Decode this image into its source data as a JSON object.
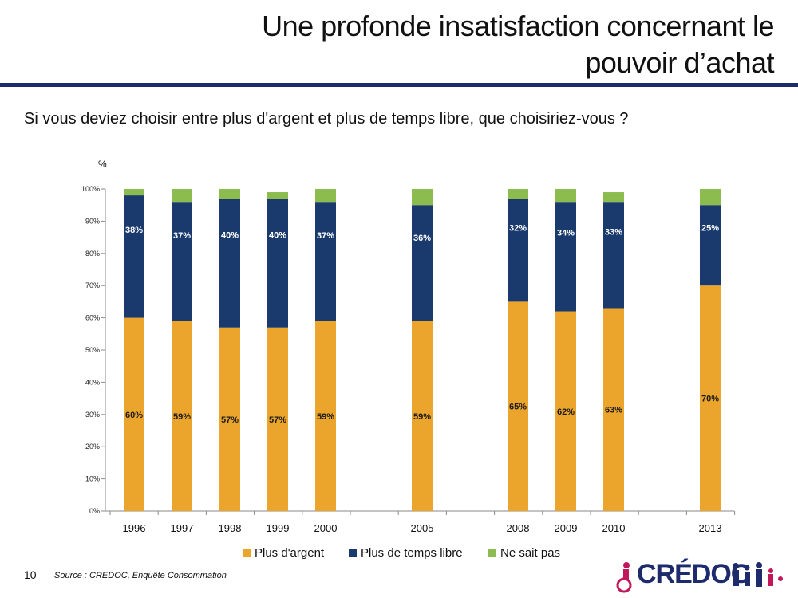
{
  "slide": {
    "title": "Une profonde insatisfaction concernant le pouvoir d’achat",
    "question": "Si vous deviez choisir entre plus d'argent et plus de temps libre, que choisiriez-vous ?",
    "page_number": "10",
    "source": "Source : CREDOC, Enquête Consommation"
  },
  "logo": {
    "text": "CRÉDOC"
  },
  "colors": {
    "argent": "#EBA52D",
    "temps": "#1A3A6E",
    "nsp": "#8DBC4E",
    "title_rule": "#1d2a6b"
  },
  "chart_data": {
    "type": "bar",
    "stacked": true,
    "unit_label": "%",
    "categories": [
      "1996",
      "1997",
      "1998",
      "1999",
      "2000",
      "2005",
      "2008",
      "2009",
      "2010",
      "2013"
    ],
    "series": [
      {
        "name": "Plus d'argent",
        "values": [
          60,
          59,
          57,
          57,
          59,
          59,
          65,
          62,
          63,
          70
        ],
        "labels": [
          "60%",
          "59%",
          "57%",
          "57%",
          "59%",
          "59%",
          "65%",
          "62%",
          "63%",
          "70%"
        ]
      },
      {
        "name": "Plus de temps libre",
        "values": [
          38,
          37,
          40,
          40,
          37,
          36,
          32,
          34,
          33,
          25
        ],
        "labels": [
          "38%",
          "37%",
          "40%",
          "40%",
          "37%",
          "36%",
          "32%",
          "34%",
          "33%",
          "25%"
        ]
      },
      {
        "name": "Ne sait pas",
        "values": [
          2,
          4,
          3,
          2,
          4,
          5,
          3,
          4,
          3,
          5
        ]
      }
    ],
    "yticks": [
      "0%",
      "10%",
      "20%",
      "30%",
      "40%",
      "50%",
      "60%",
      "70%",
      "80%",
      "90%",
      "100%"
    ],
    "ylim": [
      0,
      100
    ],
    "legend": "bottom",
    "grid": false
  }
}
